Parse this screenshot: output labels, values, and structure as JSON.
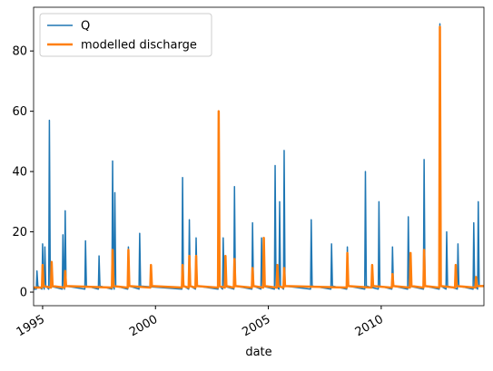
{
  "chart_data": {
    "type": "line",
    "xlabel": "date",
    "xlim": [
      1994.6,
      2014.55
    ],
    "xticks": [
      1995,
      2000,
      2005,
      2010
    ],
    "ylim": [
      -4.5,
      94.5
    ],
    "yticks": [
      0,
      20,
      40,
      60,
      80
    ],
    "legend": "upper left",
    "series": [
      {
        "name": "Q",
        "color": "#1f77b4",
        "width": 1.5,
        "x": [
          1994.6,
          1994.72,
          1994.75,
          1994.79,
          1994.97,
          1995.0,
          1995.04,
          1995.07,
          1995.1,
          1995.14,
          1995.27,
          1995.3,
          1995.34,
          1995.87,
          1995.9,
          1995.94,
          1995.97,
          1996.0,
          1996.04,
          1996.87,
          1996.9,
          1996.94,
          1997.47,
          1997.5,
          1997.54,
          1998.07,
          1998.1,
          1998.14,
          1998.17,
          1998.2,
          1998.24,
          1998.77,
          1998.8,
          1998.84,
          1999.27,
          1999.3,
          1999.34,
          2001.17,
          2001.2,
          2001.24,
          2001.47,
          2001.5,
          2001.54,
          2001.77,
          2001.8,
          2001.84,
          2002.77,
          2002.8,
          2002.84,
          2002.97,
          2003.0,
          2003.04,
          2003.47,
          2003.5,
          2003.54,
          2004.27,
          2004.3,
          2004.34,
          2004.67,
          2004.7,
          2004.74,
          2005.27,
          2005.3,
          2005.34,
          2005.47,
          2005.5,
          2005.54,
          2005.67,
          2005.7,
          2005.74,
          2006.87,
          2006.9,
          2006.94,
          2007.77,
          2007.8,
          2007.84,
          2008.47,
          2008.5,
          2008.54,
          2009.27,
          2009.3,
          2009.34,
          2009.87,
          2009.9,
          2009.94,
          2010.47,
          2010.5,
          2010.54,
          2011.17,
          2011.2,
          2011.24,
          2011.87,
          2011.9,
          2011.94,
          2012.57,
          2012.6,
          2012.64,
          2012.87,
          2012.9,
          2012.94,
          2013.37,
          2013.4,
          2013.44,
          2014.07,
          2014.1,
          2014.14,
          2014.27,
          2014.3,
          2014.34,
          2014.55
        ],
        "values": [
          1,
          1,
          7,
          2,
          1,
          16,
          2,
          1,
          15,
          2,
          1,
          57,
          2,
          1,
          19,
          2,
          1,
          27,
          2,
          1,
          17,
          2,
          1,
          12,
          2,
          1,
          43.5,
          2,
          1,
          33,
          2,
          1,
          15,
          2,
          1,
          19.5,
          2,
          1,
          38,
          2,
          1,
          24,
          2,
          1,
          18,
          2,
          1,
          60,
          2,
          1,
          18,
          2,
          1,
          35,
          2,
          1,
          23,
          2,
          1,
          18,
          2,
          1,
          42,
          2,
          1,
          30,
          2,
          1,
          47,
          2,
          1,
          24,
          2,
          1,
          16,
          2,
          1,
          15,
          2,
          1,
          40,
          2,
          1,
          30,
          2,
          1,
          15,
          2,
          1,
          25,
          2,
          1,
          44,
          2,
          1,
          89,
          2,
          1,
          20,
          2,
          1,
          16,
          2,
          1,
          23,
          2,
          1,
          30,
          2,
          2
        ]
      },
      {
        "name": "modelled discharge",
        "color": "#ff7f0e",
        "width": 2.5,
        "x": [
          1994.6,
          1994.97,
          1995.0,
          1995.04,
          1995.37,
          1995.4,
          1995.44,
          1995.97,
          1996.0,
          1996.04,
          1998.07,
          1998.1,
          1998.14,
          1998.77,
          1998.8,
          1998.84,
          1999.77,
          1999.8,
          1999.84,
          2001.17,
          2001.2,
          2001.24,
          2001.47,
          2001.5,
          2001.54,
          2001.77,
          2001.8,
          2001.84,
          2002.77,
          2002.8,
          2002.84,
          2003.07,
          2003.1,
          2003.14,
          2003.47,
          2003.5,
          2003.54,
          2004.27,
          2004.3,
          2004.34,
          2004.77,
          2004.8,
          2004.84,
          2005.37,
          2005.4,
          2005.44,
          2005.67,
          2005.7,
          2005.74,
          2008.47,
          2008.5,
          2008.54,
          2009.57,
          2009.6,
          2009.64,
          2010.47,
          2010.5,
          2010.54,
          2011.27,
          2011.3,
          2011.34,
          2011.87,
          2011.9,
          2011.94,
          2012.57,
          2012.6,
          2012.64,
          2013.27,
          2013.3,
          2013.34,
          2014.17,
          2014.2,
          2014.24,
          2014.55
        ],
        "values": [
          1.5,
          1.5,
          9,
          2,
          1.5,
          10,
          2,
          1.5,
          7,
          2,
          1.5,
          14,
          2,
          1.5,
          14,
          2,
          1.5,
          9,
          2,
          1.5,
          9,
          2,
          1.5,
          12,
          2,
          1.5,
          12,
          2,
          1.5,
          60,
          2,
          1.5,
          12,
          2,
          1.5,
          11,
          2,
          1.5,
          8,
          2,
          1.5,
          18,
          2,
          1.5,
          9,
          2,
          1.5,
          8,
          2,
          1.5,
          13,
          2,
          1.5,
          9,
          2,
          1.5,
          6,
          2,
          1.5,
          13,
          2,
          1.5,
          14,
          2,
          1.5,
          88,
          2,
          1.5,
          9,
          2,
          1.5,
          5,
          2,
          2
        ]
      }
    ]
  }
}
